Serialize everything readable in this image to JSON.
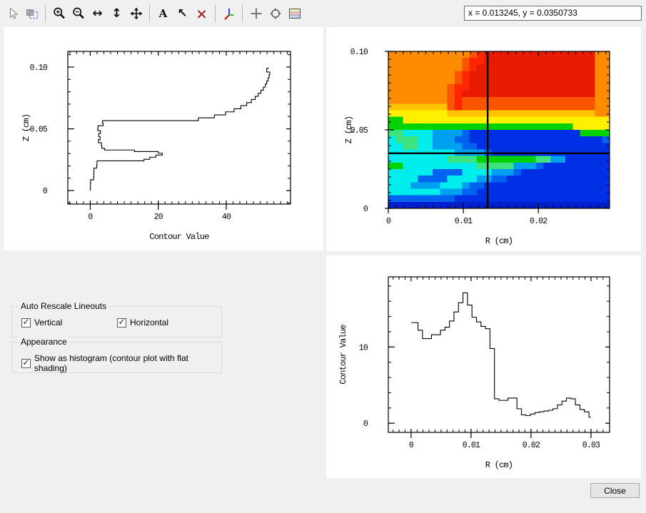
{
  "toolbar": {
    "coord_readout": "x = 0.013245, y = 0.0350733",
    "icons": [
      {
        "name": "cursor"
      },
      {
        "name": "select-region"
      },
      {
        "name": "zoom-in"
      },
      {
        "name": "zoom-out"
      },
      {
        "name": "expand-horizontal",
        "glyph": "↔"
      },
      {
        "name": "expand-vertical",
        "glyph": "↕"
      },
      {
        "name": "pan-move"
      },
      {
        "name": "add-text",
        "glyph": "A"
      },
      {
        "name": "draw-arrow",
        "glyph": "↖"
      },
      {
        "name": "delete-annotation",
        "glyph": "×"
      },
      {
        "name": "axes-orientation"
      },
      {
        "name": "crosshair"
      },
      {
        "name": "center-target"
      },
      {
        "name": "colormap-legend"
      }
    ]
  },
  "controls": {
    "check_glyph": "✓",
    "auto_rescale": {
      "title": "Auto Rescale Lineouts",
      "vertical_label": "Vertical",
      "vertical_checked": true,
      "horizontal_label": "Horizontal",
      "horizontal_checked": true
    },
    "appearance": {
      "title": "Appearance",
      "histogram_label": "Show as histogram (contour plot with flat shading)",
      "histogram_checked": true
    }
  },
  "close_button": {
    "label": "Close"
  },
  "colors": {
    "background": "#f0f0f0",
    "panel": "#ffffff"
  },
  "chart_data": [
    {
      "id": "vertical-lineout",
      "type": "line",
      "mode": "steps",
      "orientation": "vertical",
      "xlabel": "Contour Value",
      "ylabel": "Z (cm)",
      "xlim": [
        -6.6,
        58.9
      ],
      "ylim": [
        -0.0109,
        0.1127
      ],
      "xticks": [
        {
          "v": 0,
          "label": "0"
        },
        {
          "v": 20,
          "label": "20"
        },
        {
          "v": 40,
          "label": "40"
        }
      ],
      "yticks": [
        {
          "v": 0,
          "label": "0"
        },
        {
          "v": 0.05,
          "label": "0.05"
        },
        {
          "v": 0.1,
          "label": "0.10"
        }
      ],
      "xminor": {
        "step": 2,
        "from": -6,
        "to": 58
      },
      "yminor": {
        "step": 0.01,
        "from": -0.01,
        "to": 0.11
      },
      "z": [
        0.0,
        0.004,
        0.008,
        0.0095,
        0.013,
        0.017,
        0.0195,
        0.022,
        0.0235,
        0.0247,
        0.026,
        0.028,
        0.0295,
        0.031,
        0.0322,
        0.0335,
        0.035,
        0.0375,
        0.04,
        0.0425,
        0.045,
        0.0475,
        0.0495,
        0.0515,
        0.0535,
        0.0555,
        0.0578,
        0.06,
        0.0625,
        0.065,
        0.0675,
        0.07,
        0.0725,
        0.075,
        0.0775,
        0.08,
        0.0825,
        0.085,
        0.0875,
        0.09,
        0.0925,
        0.095,
        0.097,
        0.0985,
        0.0995
      ],
      "value": [
        0.05,
        0.05,
        0.1,
        1.0,
        1.05,
        1.1,
        1.9,
        2.0,
        2.0,
        15.8,
        17.5,
        19.3,
        21.2,
        20.0,
        13.0,
        4.2,
        3.4,
        3.3,
        2.4,
        2.9,
        2.5,
        3.0,
        2.2,
        2.3,
        3.8,
        3.6,
        31.8,
        36.5,
        39.8,
        42.3,
        44.3,
        46.0,
        47.4,
        48.5,
        49.4,
        50.2,
        50.9,
        51.5,
        51.9,
        52.3,
        52.6,
        52.8,
        51.9,
        51.9,
        52.4
      ]
    },
    {
      "id": "contour-map",
      "type": "heatmap",
      "xlabel": "R (cm)",
      "ylabel": "Z (cm)",
      "xlim": [
        0,
        0.0295
      ],
      "ylim": [
        0,
        0.1
      ],
      "xticks": [
        {
          "v": 0,
          "label": "0"
        },
        {
          "v": 0.01,
          "label": "0.01"
        },
        {
          "v": 0.02,
          "label": "0.02"
        }
      ],
      "yticks": [
        {
          "v": 0,
          "label": "0"
        },
        {
          "v": 0.05,
          "label": "0.05"
        },
        {
          "v": 0.1,
          "label": "0.10"
        }
      ],
      "xminor": {
        "step": 0.001,
        "from": 0.001,
        "to": 0.029
      },
      "yminor": {
        "step": 0.005,
        "from": 0.005,
        "to": 0.095
      },
      "crosshair": {
        "x": 0.013245,
        "y": 0.0350733
      },
      "ncols": 30,
      "nrows": 24,
      "palette": {
        "o": "#FF8C00",
        "O": "#FB5400",
        "r": "#FF2600",
        "R": "#E81A00",
        "Y": "#FFC400",
        "y": "#FFF000",
        "g": "#00D300",
        "G": "#3CE37E",
        "C": "#00EDED",
        "c": "#00A0F0",
        "b": "#0063F0",
        "B": "#0030E6",
        "D": "#0020CE"
      },
      "rows": [
        "oooooooooooOrRRRRRRRRRRRRRRRoo",
        "ooooooooooOrrRRRRRRRRRRRRRRRoo",
        "ooooooooooOrRRRRRRRRRRRRRRRRoo",
        "oooooooooOrRRRRRRRRRRRRRRRRRoo",
        "oooooooooOrRRRRRRRRRRRRRRRRRoo",
        "ooooooooOrrRRRRRRRRRRRRRRRRRoo",
        "ooooooooOrRRRRRRRRRRRRRRRRRRoo",
        "ooooooooOrOOOOOOOOOOOOOOOOOOoo",
        "YYYYYYYYOrOOOOOOOOOOOOOOOOOOoo",
        "yyyyyyyyYYYYYYYYYYYYYYYYYYYYoo",
        "ggyyyyyyyyyyyyyyyyyyyyyyyyyyyy",
        "gggggggggggggggggggggggggyyyyy",
        "GGCCCCccccbBBBBBBBBBBBBBBBgggg",
        "CGGGCCcccbbBBBBBBBBBBBBBBBBBBb",
        "CCGGCCccccbbBBBBBBBBBBBBBBBBBB",
        "CCCCCCCCCccccbBBBBBBBBBBBBBBBB",
        "CCCCCCCCGGGGggggggggGGccBBBBBB",
        "ggCCCCCCCCCCGGGGGcccbBBBBBBBBB",
        "CCCCCCbbbbCCCCcccbBBBBBBBBBBBB",
        "CCCCbbbbCCCCccbbBBBBBBBBBBBBBB",
        "CCCccccCCCcbbBBBBBBBBBBBBBBBBB",
        "CCCCCCCcccbbBBBBBBBBBBBBBBBBBB",
        "bbbbbbbbbBBBBBBBBBBBBBBBBBBBBB",
        "DDDDDDDDDDDDDDDDDDDDDDDDDDDDDD"
      ]
    },
    {
      "id": "horizontal-lineout",
      "type": "line",
      "mode": "steps",
      "orientation": "horizontal",
      "xlabel": "R (cm)",
      "ylabel": "Contour Value",
      "xlim": [
        -0.0038,
        0.0331
      ],
      "ylim": [
        -1.2,
        19.2
      ],
      "xticks": [
        {
          "v": 0,
          "label": "0"
        },
        {
          "v": 0.01,
          "label": "0.01"
        },
        {
          "v": 0.02,
          "label": "0.02"
        },
        {
          "v": 0.03,
          "label": "0.03"
        }
      ],
      "yticks": [
        {
          "v": 0,
          "label": "0"
        },
        {
          "v": 10,
          "label": "10"
        }
      ],
      "xminor": {
        "step": 0.001,
        "from": -0.003,
        "to": 0.033
      },
      "yminor": {
        "step": 2,
        "from": 0,
        "to": 18
      },
      "r": [
        0.0,
        0.0008,
        0.0015,
        0.0023,
        0.003,
        0.0038,
        0.0045,
        0.0053,
        0.006,
        0.0068,
        0.0075,
        0.0083,
        0.009,
        0.0098,
        0.0105,
        0.0113,
        0.012,
        0.0128,
        0.0135,
        0.0143,
        0.015,
        0.0158,
        0.0165,
        0.0173,
        0.018,
        0.0188,
        0.0195,
        0.0203,
        0.021,
        0.0218,
        0.0225,
        0.0233,
        0.024,
        0.0248,
        0.0255,
        0.0263,
        0.027,
        0.0278,
        0.0285,
        0.0293,
        0.03
      ],
      "value": [
        13.2,
        13.2,
        12.2,
        11.1,
        11.1,
        11.6,
        11.6,
        12.2,
        12.6,
        13.4,
        14.6,
        15.8,
        17.1,
        15.5,
        13.9,
        13.3,
        12.7,
        12.4,
        9.8,
        3.2,
        3.0,
        3.0,
        3.3,
        3.3,
        1.9,
        1.1,
        1.0,
        1.2,
        1.4,
        1.5,
        1.6,
        1.7,
        1.9,
        2.4,
        2.9,
        3.3,
        3.2,
        2.4,
        1.8,
        1.5,
        0.8
      ]
    }
  ]
}
